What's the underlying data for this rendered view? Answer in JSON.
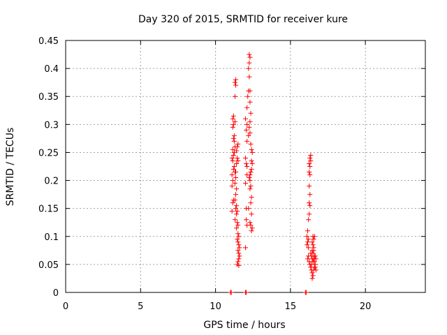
{
  "chart_data": {
    "type": "scatter",
    "title": "Day 320 of 2015, SRMTID for receiver kure",
    "xlabel": "GPS time / hours",
    "ylabel": "SRMTID / TECUs",
    "xlim": [
      0,
      24
    ],
    "ylim": [
      0,
      0.45
    ],
    "x_ticks": [
      0,
      5,
      10,
      15,
      20
    ],
    "x_tick_labels": [
      "0",
      "5",
      "10",
      "15",
      "20"
    ],
    "y_ticks": [
      0,
      0.05,
      0.1,
      0.15,
      0.2,
      0.25,
      0.3,
      0.35,
      0.4,
      0.45
    ],
    "y_tick_labels": [
      "0",
      "0.05",
      "0.1",
      "0.15",
      "0.2",
      "0.25",
      "0.3",
      "0.35",
      "0.4",
      "0.45"
    ],
    "grid": true,
    "marker": "+",
    "marker_color": "#ff0000",
    "series": [
      {
        "name": "SRMTID",
        "points": [
          [
            11.0,
            0.0
          ],
          [
            11.05,
            0.0
          ],
          [
            12.0,
            0.0
          ],
          [
            12.05,
            0.0
          ],
          [
            16.0,
            0.0
          ],
          [
            16.05,
            0.0
          ],
          [
            11.1,
            0.145
          ],
          [
            11.15,
            0.16
          ],
          [
            11.2,
            0.165
          ],
          [
            11.1,
            0.19
          ],
          [
            11.15,
            0.2
          ],
          [
            11.1,
            0.21
          ],
          [
            11.2,
            0.22
          ],
          [
            11.15,
            0.235
          ],
          [
            11.1,
            0.24
          ],
          [
            11.2,
            0.245
          ],
          [
            11.25,
            0.25
          ],
          [
            11.15,
            0.255
          ],
          [
            11.3,
            0.26
          ],
          [
            11.25,
            0.27
          ],
          [
            11.2,
            0.275
          ],
          [
            11.25,
            0.28
          ],
          [
            11.15,
            0.295
          ],
          [
            11.2,
            0.3
          ],
          [
            11.15,
            0.31
          ],
          [
            11.2,
            0.315
          ],
          [
            11.3,
            0.305
          ],
          [
            11.35,
            0.37
          ],
          [
            11.3,
            0.375
          ],
          [
            11.35,
            0.38
          ],
          [
            11.3,
            0.35
          ],
          [
            11.25,
            0.225
          ],
          [
            11.3,
            0.215
          ],
          [
            11.35,
            0.205
          ],
          [
            11.3,
            0.195
          ],
          [
            11.4,
            0.185
          ],
          [
            11.35,
            0.175
          ],
          [
            11.3,
            0.165
          ],
          [
            11.4,
            0.155
          ],
          [
            11.35,
            0.15
          ],
          [
            11.45,
            0.145
          ],
          [
            11.4,
            0.14
          ],
          [
            11.3,
            0.13
          ],
          [
            11.45,
            0.125
          ],
          [
            11.5,
            0.12
          ],
          [
            11.4,
            0.115
          ],
          [
            11.5,
            0.105
          ],
          [
            11.55,
            0.1
          ],
          [
            11.45,
            0.095
          ],
          [
            11.5,
            0.09
          ],
          [
            11.55,
            0.085
          ],
          [
            11.6,
            0.08
          ],
          [
            11.5,
            0.075
          ],
          [
            11.55,
            0.07
          ],
          [
            11.6,
            0.065
          ],
          [
            11.55,
            0.06
          ],
          [
            11.5,
            0.055
          ],
          [
            11.45,
            0.05
          ],
          [
            11.55,
            0.048
          ],
          [
            11.4,
            0.253
          ],
          [
            11.45,
            0.24
          ],
          [
            11.5,
            0.235
          ],
          [
            11.4,
            0.23
          ],
          [
            11.45,
            0.26
          ],
          [
            11.5,
            0.265
          ],
          [
            11.35,
            0.215
          ],
          [
            12.0,
            0.08
          ],
          [
            12.05,
            0.13
          ],
          [
            12.1,
            0.12
          ],
          [
            12.05,
            0.15
          ],
          [
            12.0,
            0.195
          ],
          [
            12.1,
            0.21
          ],
          [
            12.05,
            0.23
          ],
          [
            12.0,
            0.24
          ],
          [
            12.1,
            0.27
          ],
          [
            12.05,
            0.29
          ],
          [
            12.1,
            0.3
          ],
          [
            12.0,
            0.31
          ],
          [
            12.1,
            0.33
          ],
          [
            12.15,
            0.35
          ],
          [
            12.2,
            0.36
          ],
          [
            12.25,
            0.385
          ],
          [
            12.2,
            0.4
          ],
          [
            12.25,
            0.41
          ],
          [
            12.3,
            0.42
          ],
          [
            12.25,
            0.425
          ],
          [
            12.3,
            0.36
          ],
          [
            12.3,
            0.34
          ],
          [
            12.35,
            0.32
          ],
          [
            12.3,
            0.305
          ],
          [
            12.25,
            0.295
          ],
          [
            12.3,
            0.285
          ],
          [
            12.2,
            0.28
          ],
          [
            12.35,
            0.265
          ],
          [
            12.4,
            0.255
          ],
          [
            12.45,
            0.25
          ],
          [
            12.4,
            0.235
          ],
          [
            12.45,
            0.23
          ],
          [
            12.4,
            0.22
          ],
          [
            12.35,
            0.215
          ],
          [
            12.3,
            0.21
          ],
          [
            12.25,
            0.205
          ],
          [
            12.3,
            0.2
          ],
          [
            12.35,
            0.19
          ],
          [
            12.3,
            0.185
          ],
          [
            12.4,
            0.17
          ],
          [
            12.35,
            0.16
          ],
          [
            12.2,
            0.15
          ],
          [
            12.4,
            0.14
          ],
          [
            12.3,
            0.125
          ],
          [
            12.35,
            0.12
          ],
          [
            12.45,
            0.115
          ],
          [
            12.4,
            0.11
          ],
          [
            12.1,
            0.225
          ],
          [
            16.1,
            0.085
          ],
          [
            16.15,
            0.09
          ],
          [
            16.2,
            0.095
          ],
          [
            16.1,
            0.1
          ],
          [
            16.15,
            0.11
          ],
          [
            16.2,
            0.13
          ],
          [
            16.25,
            0.14
          ],
          [
            16.3,
            0.155
          ],
          [
            16.25,
            0.16
          ],
          [
            16.3,
            0.175
          ],
          [
            16.25,
            0.19
          ],
          [
            16.3,
            0.21
          ],
          [
            16.25,
            0.215
          ],
          [
            16.3,
            0.225
          ],
          [
            16.25,
            0.23
          ],
          [
            16.35,
            0.235
          ],
          [
            16.3,
            0.24
          ],
          [
            16.35,
            0.245
          ],
          [
            16.2,
            0.08
          ],
          [
            16.15,
            0.06
          ],
          [
            16.2,
            0.065
          ],
          [
            16.25,
            0.055
          ],
          [
            16.3,
            0.05
          ],
          [
            16.35,
            0.045
          ],
          [
            16.4,
            0.04
          ],
          [
            16.45,
            0.035
          ],
          [
            16.4,
            0.05
          ],
          [
            16.45,
            0.06
          ],
          [
            16.5,
            0.07
          ],
          [
            16.55,
            0.08
          ],
          [
            16.5,
            0.085
          ],
          [
            16.55,
            0.075
          ],
          [
            16.6,
            0.065
          ],
          [
            16.55,
            0.06
          ],
          [
            16.6,
            0.055
          ],
          [
            16.65,
            0.05
          ],
          [
            16.6,
            0.045
          ],
          [
            16.55,
            0.04
          ],
          [
            16.5,
            0.03
          ],
          [
            16.45,
            0.025
          ],
          [
            16.5,
            0.1
          ],
          [
            16.55,
            0.095
          ],
          [
            16.45,
            0.09
          ],
          [
            16.6,
            0.1
          ],
          [
            16.65,
            0.065
          ],
          [
            16.7,
            0.06
          ],
          [
            16.65,
            0.045
          ],
          [
            16.7,
            0.04
          ],
          [
            16.4,
            0.065
          ],
          [
            16.35,
            0.07
          ],
          [
            16.45,
            0.075
          ],
          [
            16.5,
            0.055
          ]
        ]
      }
    ]
  }
}
